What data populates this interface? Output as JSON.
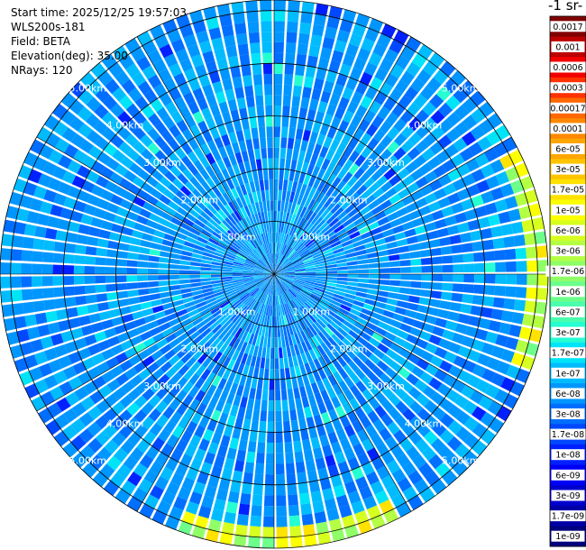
{
  "header": {
    "start_time": "Start time: 2025/12/25 19:57:03",
    "device": "WLS200s-181",
    "field": "Field: BETA",
    "elevation": "Elevation(deg): 35.00",
    "nrays": "NRays: 120"
  },
  "colorbar": {
    "title": "-1 sr-",
    "labels": [
      "0.0017",
      "0.001",
      "0.0006",
      "0.0003",
      "0.00017",
      "0.0001",
      "6e-05",
      "3e-05",
      "1.7e-05",
      "1e-05",
      "6e-06",
      "3e-06",
      "1.7e-06",
      "1e-06",
      "6e-07",
      "3e-07",
      "1.7e-07",
      "1e-07",
      "6e-08",
      "3e-08",
      "1.7e-08",
      "1e-08",
      "6e-09",
      "3e-09",
      "1.7e-09",
      "1e-09"
    ],
    "colors": [
      "#800000",
      "#bc0000",
      "#f20000",
      "#ff3200",
      "#ff6700",
      "#ff8800",
      "#ffa600",
      "#ffc400",
      "#ffe200",
      "#fbff00",
      "#d7ff1f",
      "#b4ff43",
      "#90ff67",
      "#6cff8b",
      "#49ffae",
      "#25ffd2",
      "#00e4f8",
      "#00bcff",
      "#0096ff",
      "#006eff",
      "#0048ff",
      "#0020ff",
      "#0000f6",
      "#0000cd",
      "#0000a6",
      "#00007f"
    ]
  },
  "chart_data": {
    "type": "heatmap",
    "projection": "polar (PPI scan)",
    "field": "BETA",
    "elevation_deg": 35.0,
    "n_rays": 120,
    "max_range_km": 5.2,
    "range_rings_km": [
      1,
      2,
      3,
      4,
      5
    ],
    "range_ring_labels": [
      "1.00km",
      "2.00km",
      "3.00km",
      "4.00km",
      "5.00km"
    ],
    "dominant_value_range": [
      3e-08,
      1e-07
    ],
    "edge_high_value_range": [
      1e-06,
      1e-05
    ],
    "colorbar_scale": "log",
    "colorbar_range": [
      1e-09,
      0.0017
    ],
    "grid": true
  }
}
